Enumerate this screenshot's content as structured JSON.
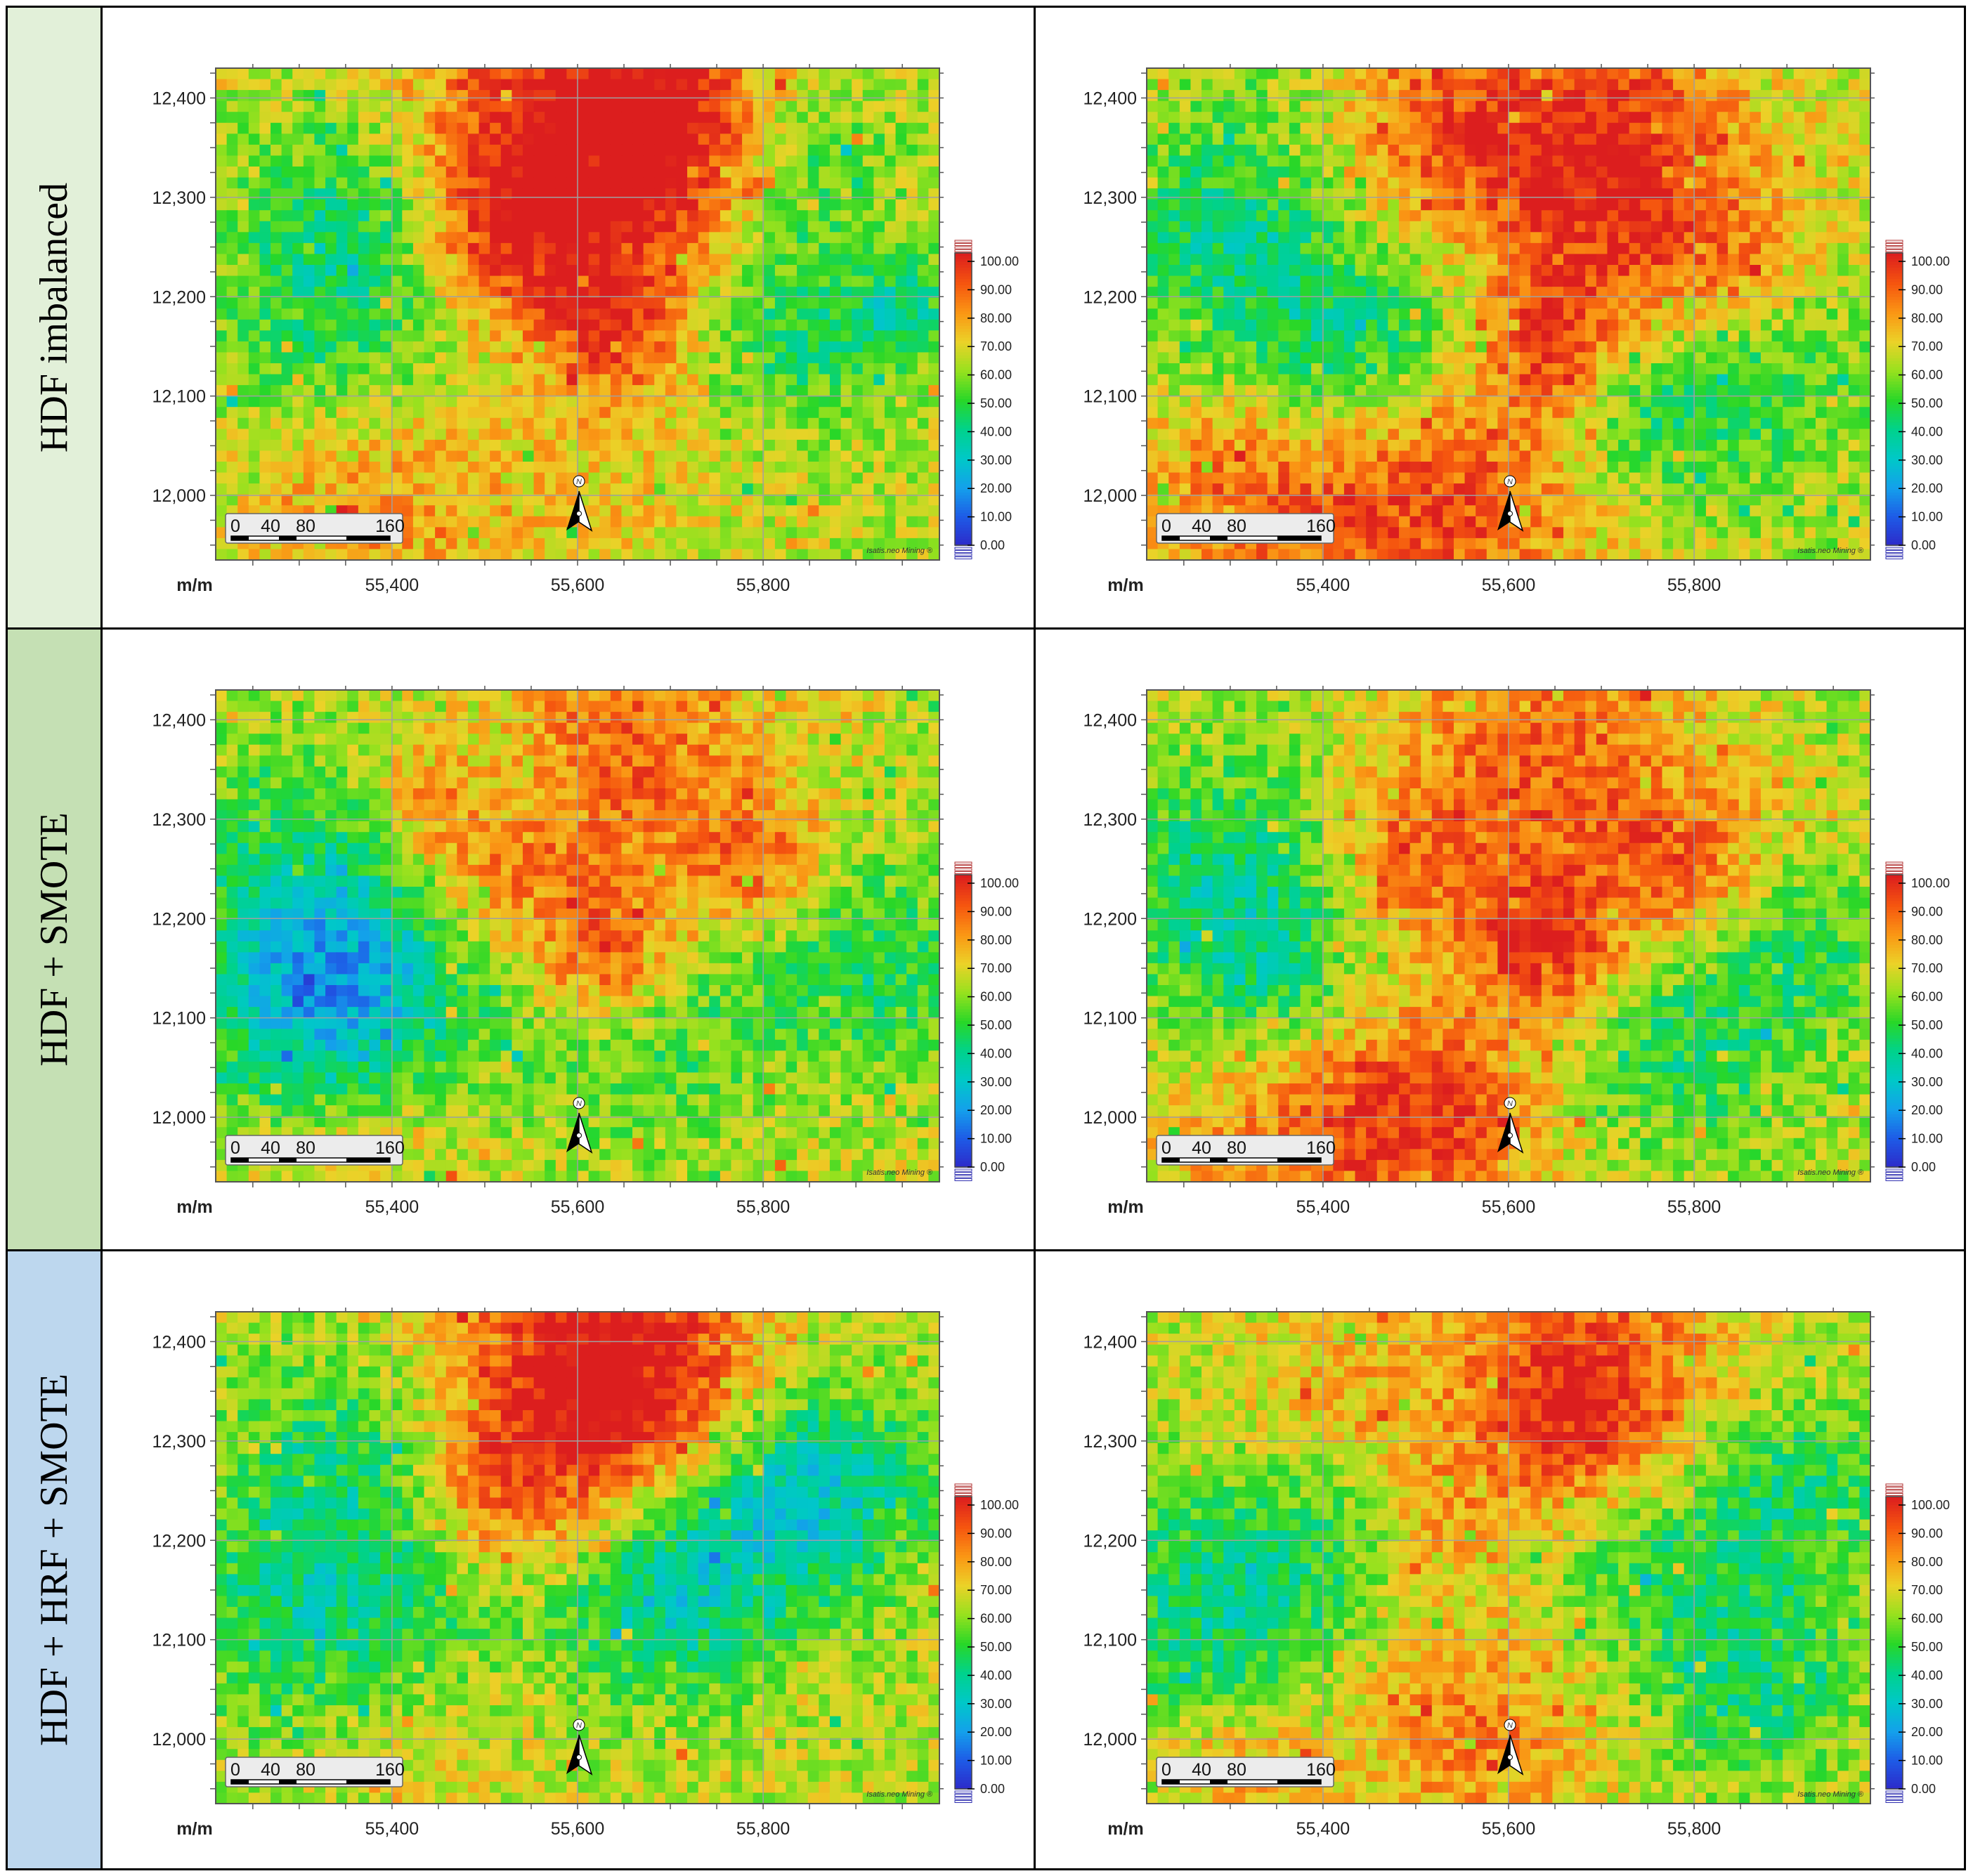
{
  "rows": [
    {
      "label": "HDF imbalanced",
      "color": "#e2f0d9"
    },
    {
      "label": "HDF + SMOTE",
      "color": "#c5e0b4"
    },
    {
      "label": "HDF + HRF + SMOTE",
      "color": "#bdd7ee"
    }
  ],
  "shared": {
    "y_ticks": [
      "12,400",
      "12,300",
      "12,200",
      "12,100",
      "12,000"
    ],
    "x_ticks": [
      "55,400",
      "55,600",
      "55,800"
    ],
    "unit_label": "m/m",
    "scalebar_labels": [
      "0",
      "40",
      "80",
      "160"
    ],
    "north_label": "N",
    "colorbar_labels": [
      "100.00",
      "90.00",
      "80.00",
      "70.00",
      "60.00",
      "50.00",
      "40.00",
      "30.00",
      "20.00",
      "10.00",
      "0.00"
    ],
    "watermark": "Isatis.neo Mining ®"
  },
  "chart_data": [
    {
      "type": "heatmap",
      "row": 0,
      "col": 0,
      "hotspots": [
        [
          0.45,
          0.12,
          30,
          0.5
        ],
        [
          0.65,
          0.1,
          22,
          0.45
        ],
        [
          0.55,
          0.25,
          25,
          0.35
        ],
        [
          0.38,
          0.36,
          16,
          0.35
        ],
        [
          0.55,
          0.54,
          14,
          0.55
        ],
        [
          0.2,
          0.85,
          28,
          0.35
        ],
        [
          0.55,
          0.75,
          26,
          0.3
        ]
      ],
      "coldspots": [
        [
          0.2,
          0.32,
          22,
          0.4
        ],
        [
          0.8,
          0.2,
          18,
          0.35
        ],
        [
          0.15,
          0.6,
          25,
          0.3
        ],
        [
          0.55,
          0.63,
          25,
          0.3
        ],
        [
          0.8,
          0.55,
          16,
          0.35
        ],
        [
          0.95,
          0.5,
          10,
          0.45
        ]
      ],
      "xlim": [
        55210,
        55990
      ],
      "ylim": [
        11935,
        12430
      ],
      "colorbar": {
        "min": 0,
        "max": 100
      }
    },
    {
      "type": "heatmap",
      "row": 0,
      "col": 1,
      "hotspots": [
        [
          0.6,
          0.1,
          32,
          0.45
        ],
        [
          0.4,
          0.18,
          20,
          0.3
        ],
        [
          0.55,
          0.55,
          14,
          0.55
        ],
        [
          0.4,
          0.86,
          28,
          0.55
        ],
        [
          0.12,
          0.86,
          22,
          0.35
        ],
        [
          0.8,
          0.43,
          18,
          0.35
        ],
        [
          0.65,
          0.25,
          20,
          0.3
        ]
      ],
      "coldspots": [
        [
          0.12,
          0.35,
          25,
          0.4
        ],
        [
          0.4,
          0.55,
          22,
          0.3
        ],
        [
          0.85,
          0.6,
          20,
          0.35
        ],
        [
          0.25,
          0.6,
          18,
          0.3
        ],
        [
          0.7,
          0.7,
          16,
          0.3
        ]
      ],
      "xlim": [
        55210,
        55990
      ],
      "ylim": [
        11935,
        12430
      ],
      "colorbar": {
        "min": 0,
        "max": 100
      }
    },
    {
      "type": "heatmap",
      "row": 1,
      "col": 0,
      "hotspots": [
        [
          0.55,
          0.13,
          28,
          0.45
        ],
        [
          0.38,
          0.35,
          18,
          0.4
        ],
        [
          0.55,
          0.55,
          14,
          0.6
        ],
        [
          0.75,
          0.36,
          14,
          0.4
        ],
        [
          0.3,
          0.22,
          12,
          0.3
        ],
        [
          0.2,
          0.88,
          20,
          0.3
        ]
      ],
      "coldspots": [
        [
          0.15,
          0.5,
          30,
          0.55
        ],
        [
          0.18,
          0.68,
          22,
          0.45
        ],
        [
          0.6,
          0.65,
          22,
          0.35
        ],
        [
          0.9,
          0.55,
          20,
          0.35
        ],
        [
          0.4,
          0.2,
          14,
          0.3
        ]
      ],
      "xlim": [
        55210,
        55990
      ],
      "ylim": [
        11935,
        12430
      ],
      "colorbar": {
        "min": 0,
        "max": 100
      }
    },
    {
      "type": "heatmap",
      "row": 1,
      "col": 1,
      "hotspots": [
        [
          0.55,
          0.12,
          28,
          0.45
        ],
        [
          0.35,
          0.35,
          16,
          0.35
        ],
        [
          0.55,
          0.52,
          14,
          0.6
        ],
        [
          0.75,
          0.38,
          18,
          0.4
        ],
        [
          0.2,
          0.86,
          25,
          0.45
        ],
        [
          0.4,
          0.86,
          22,
          0.45
        ]
      ],
      "coldspots": [
        [
          0.12,
          0.4,
          24,
          0.45
        ],
        [
          0.18,
          0.66,
          20,
          0.35
        ],
        [
          0.75,
          0.7,
          22,
          0.35
        ],
        [
          0.9,
          0.5,
          16,
          0.3
        ]
      ],
      "xlim": [
        55210,
        55990
      ],
      "ylim": [
        11935,
        12430
      ],
      "colorbar": {
        "min": 0,
        "max": 100
      }
    },
    {
      "type": "heatmap",
      "row": 2,
      "col": 0,
      "hotspots": [
        [
          0.45,
          0.1,
          30,
          0.45
        ],
        [
          0.62,
          0.1,
          22,
          0.4
        ],
        [
          0.38,
          0.38,
          16,
          0.35
        ],
        [
          0.55,
          0.25,
          20,
          0.3
        ],
        [
          0.3,
          0.78,
          20,
          0.25
        ]
      ],
      "coldspots": [
        [
          0.2,
          0.3,
          24,
          0.4
        ],
        [
          0.7,
          0.45,
          24,
          0.4
        ],
        [
          0.1,
          0.62,
          22,
          0.35
        ],
        [
          0.85,
          0.35,
          20,
          0.45
        ],
        [
          0.3,
          0.67,
          20,
          0.35
        ],
        [
          0.6,
          0.6,
          18,
          0.35
        ]
      ],
      "xlim": [
        55210,
        55990
      ],
      "ylim": [
        11935,
        12430
      ],
      "colorbar": {
        "min": 0,
        "max": 100
      }
    },
    {
      "type": "heatmap",
      "row": 2,
      "col": 1,
      "hotspots": [
        [
          0.6,
          0.1,
          30,
          0.45
        ],
        [
          0.38,
          0.38,
          16,
          0.35
        ],
        [
          0.25,
          0.2,
          18,
          0.3
        ],
        [
          0.45,
          0.85,
          24,
          0.35
        ],
        [
          0.15,
          0.92,
          14,
          0.3
        ],
        [
          0.6,
          0.25,
          18,
          0.3
        ]
      ],
      "coldspots": [
        [
          0.1,
          0.6,
          24,
          0.45
        ],
        [
          0.3,
          0.35,
          20,
          0.35
        ],
        [
          0.7,
          0.5,
          22,
          0.35
        ],
        [
          0.9,
          0.35,
          18,
          0.35
        ],
        [
          0.85,
          0.75,
          18,
          0.35
        ]
      ],
      "xlim": [
        55210,
        55990
      ],
      "ylim": [
        11935,
        12430
      ],
      "colorbar": {
        "min": 0,
        "max": 100
      }
    }
  ]
}
